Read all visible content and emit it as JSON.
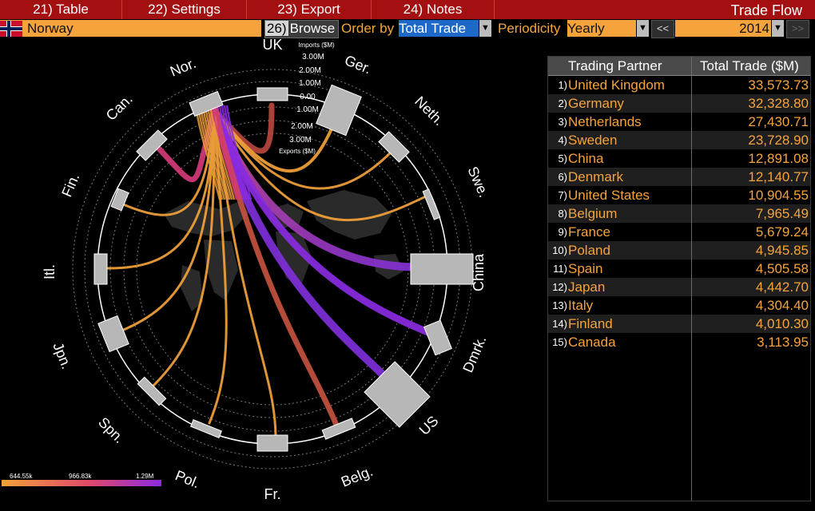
{
  "menu": {
    "items": [
      {
        "num": "21)",
        "label": "Table"
      },
      {
        "num": "22)",
        "label": "Settings"
      },
      {
        "num": "23)",
        "label": "Export"
      },
      {
        "num": "24)",
        "label": "Notes"
      }
    ],
    "title": "Trade Flow"
  },
  "toolbar": {
    "country": "Norway",
    "browse_num": "26)",
    "browse_label": "Browse",
    "order_label": "Order by",
    "order_value": "Total Trade",
    "periodicity_label": "Periodicity",
    "periodicity_value": "Yearly",
    "prev_label": "<<",
    "year": "2014",
    "next_label": ">>"
  },
  "colors": {
    "menu_bg": "#a40f11",
    "accent_orange": "#f6a33b",
    "order_highlight": "#1e68c9",
    "flow_low": "#f2a23a",
    "flow_mid": "#e0496a",
    "flow_high": "#8a2be2"
  },
  "chord": {
    "center_label": "UK",
    "scale_labels": [
      "Imports ($M)",
      "3.00M",
      "2.00M",
      "1.00M",
      "0.00",
      "1.00M",
      "2.00M",
      "3.00M",
      "Exports ($M)"
    ],
    "nodes": [
      {
        "label": "UK"
      },
      {
        "label": "Ger."
      },
      {
        "label": "Neth."
      },
      {
        "label": "Swe."
      },
      {
        "label": "China"
      },
      {
        "label": "Dmrk."
      },
      {
        "label": "US"
      },
      {
        "label": "Belg."
      },
      {
        "label": "Fr."
      },
      {
        "label": "Pol."
      },
      {
        "label": "Spn."
      },
      {
        "label": "Jpn."
      },
      {
        "label": "Itl."
      },
      {
        "label": "Fin."
      },
      {
        "label": "Can."
      },
      {
        "label": "Nor."
      }
    ]
  },
  "legend": {
    "labels": [
      "644.55k",
      "966.83k",
      "1.29M"
    ]
  },
  "table": {
    "headers": {
      "partner": "Trading Partner",
      "total": "Total Trade ($M)"
    },
    "rows": [
      {
        "rank": "1)",
        "partner": "United Kingdom",
        "value": "33,573.73"
      },
      {
        "rank": "2)",
        "partner": "Germany",
        "value": "32,328.80"
      },
      {
        "rank": "3)",
        "partner": "Netherlands",
        "value": "27,430.71"
      },
      {
        "rank": "4)",
        "partner": "Sweden",
        "value": "23,728.90"
      },
      {
        "rank": "5)",
        "partner": "China",
        "value": "12,891.08"
      },
      {
        "rank": "6)",
        "partner": "Denmark",
        "value": "12,140.77"
      },
      {
        "rank": "7)",
        "partner": "United States",
        "value": "10,904.55"
      },
      {
        "rank": "8)",
        "partner": "Belgium",
        "value": "7,965.49"
      },
      {
        "rank": "9)",
        "partner": "France",
        "value": "5,679.24"
      },
      {
        "rank": "10)",
        "partner": "Poland",
        "value": "4,945.85"
      },
      {
        "rank": "11)",
        "partner": "Spain",
        "value": "4,505.58"
      },
      {
        "rank": "12)",
        "partner": "Japan",
        "value": "4,442.70"
      },
      {
        "rank": "13)",
        "partner": "Italy",
        "value": "4,304.40"
      },
      {
        "rank": "14)",
        "partner": "Finland",
        "value": "4,010.30"
      },
      {
        "rank": "15)",
        "partner": "Canada",
        "value": "3,113.95"
      }
    ]
  }
}
